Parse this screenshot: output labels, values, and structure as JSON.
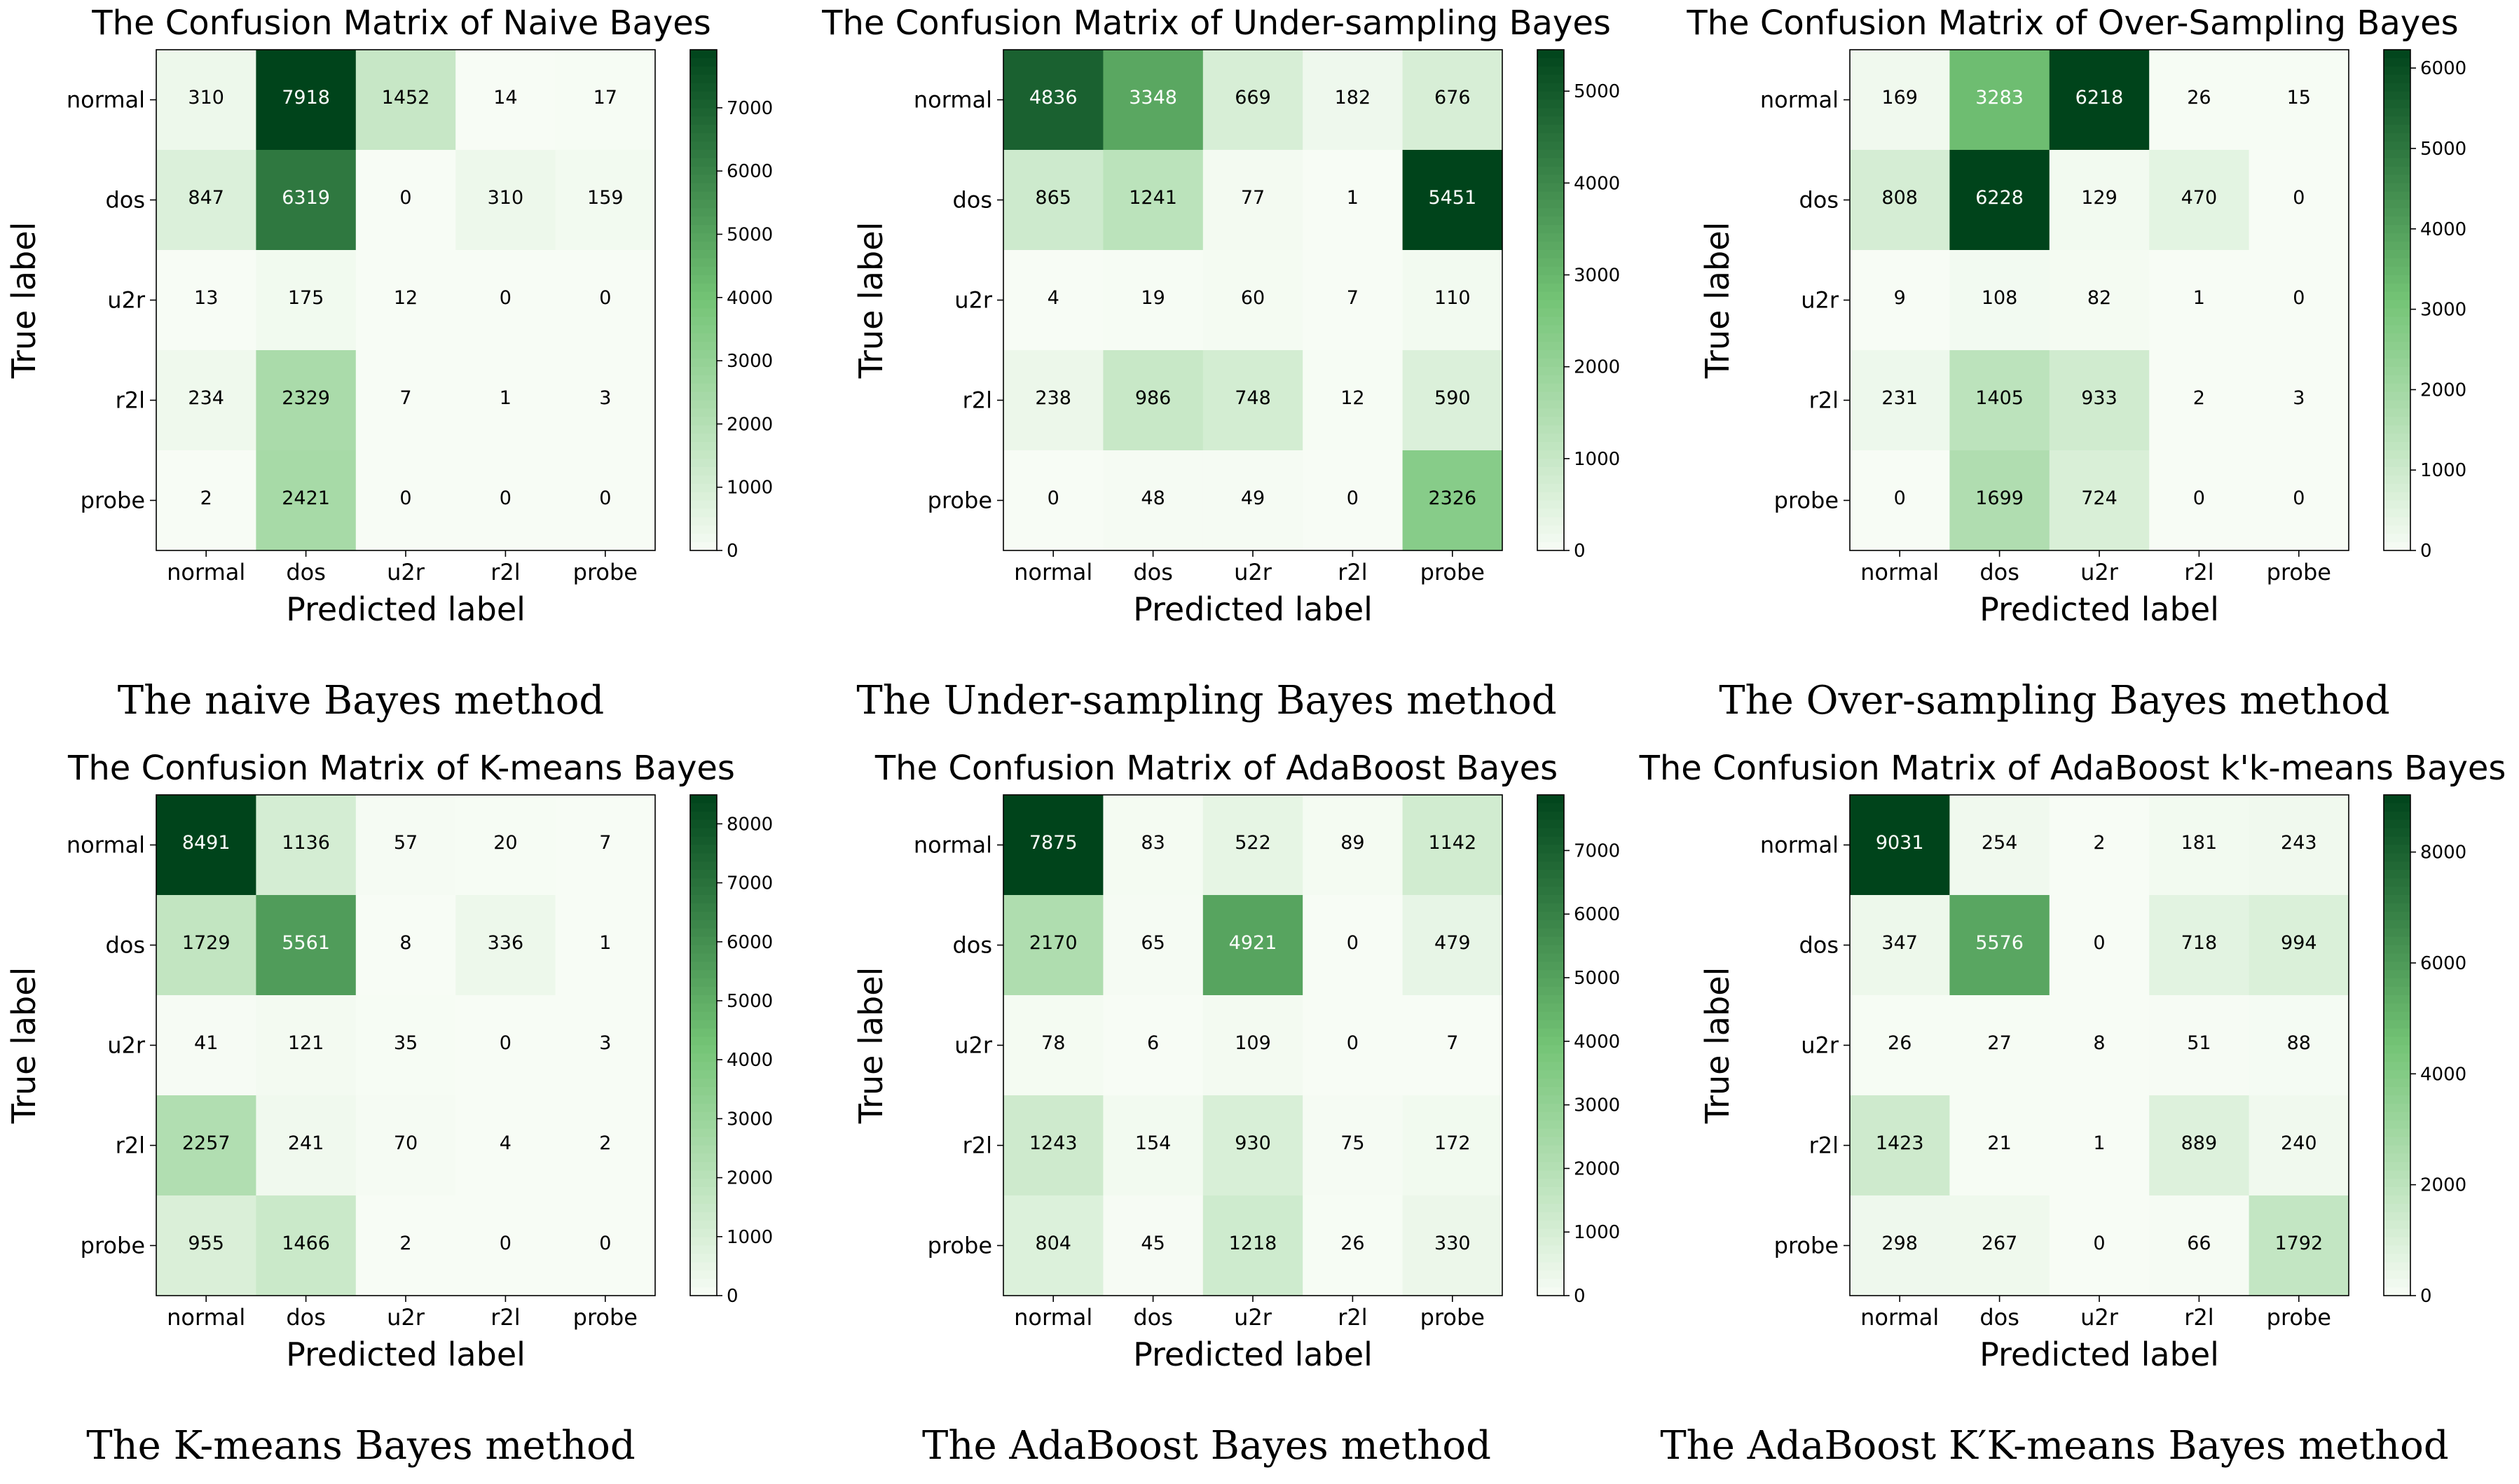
{
  "labels": [
    "normal",
    "dos",
    "u2r",
    "r2l",
    "probe"
  ],
  "xlabel": "Predicted label",
  "ylabel": "True label",
  "colors": {
    "low": "#f7fcf5",
    "mid": "#74c476",
    "high": "#00441b",
    "text_dark": "#000000",
    "text_light": "#ffffff"
  },
  "chart_data": [
    {
      "type": "heatmap",
      "title": "The Confusion Matrix of Naive Bayes",
      "caption": "The naive Bayes method",
      "vmax": 7918,
      "colorbar_ticks": [
        0,
        1000,
        2000,
        3000,
        4000,
        5000,
        6000,
        7000
      ],
      "matrix": [
        [
          310,
          7918,
          1452,
          14,
          17
        ],
        [
          847,
          6319,
          0,
          310,
          159
        ],
        [
          13,
          175,
          12,
          0,
          0
        ],
        [
          234,
          2329,
          7,
          1,
          3
        ],
        [
          2,
          2421,
          0,
          0,
          0
        ]
      ]
    },
    {
      "type": "heatmap",
      "title": "The Confusion Matrix of Under-sampling Bayes",
      "caption": "The Under-sampling Bayes method",
      "vmax": 5451,
      "colorbar_ticks": [
        0,
        1000,
        2000,
        3000,
        4000,
        5000
      ],
      "matrix": [
        [
          4836,
          3348,
          669,
          182,
          676
        ],
        [
          865,
          1241,
          77,
          1,
          5451
        ],
        [
          4,
          19,
          60,
          7,
          110
        ],
        [
          238,
          986,
          748,
          12,
          590
        ],
        [
          0,
          48,
          49,
          0,
          2326
        ]
      ]
    },
    {
      "type": "heatmap",
      "title": "The Confusion Matrix of Over-Sampling Bayes",
      "caption": "The Over-sampling Bayes method",
      "vmax": 6228,
      "colorbar_ticks": [
        0,
        1000,
        2000,
        3000,
        4000,
        5000,
        6000
      ],
      "matrix": [
        [
          169,
          3283,
          6218,
          26,
          15
        ],
        [
          808,
          6228,
          129,
          470,
          0
        ],
        [
          9,
          108,
          82,
          1,
          0
        ],
        [
          231,
          1405,
          933,
          2,
          3
        ],
        [
          0,
          1699,
          724,
          0,
          0
        ]
      ]
    },
    {
      "type": "heatmap",
      "title": "The Confusion Matrix of K-means Bayes",
      "caption": "The K-means Bayes method",
      "vmax": 8491,
      "colorbar_ticks": [
        0,
        1000,
        2000,
        3000,
        4000,
        5000,
        6000,
        7000,
        8000
      ],
      "matrix": [
        [
          8491,
          1136,
          57,
          20,
          7
        ],
        [
          1729,
          5561,
          8,
          336,
          1
        ],
        [
          41,
          121,
          35,
          0,
          3
        ],
        [
          2257,
          241,
          70,
          4,
          2
        ],
        [
          955,
          1466,
          2,
          0,
          0
        ]
      ]
    },
    {
      "type": "heatmap",
      "title": "The Confusion Matrix of AdaBoost Bayes",
      "caption": "The AdaBoost Bayes method",
      "vmax": 7875,
      "colorbar_ticks": [
        0,
        1000,
        2000,
        3000,
        4000,
        5000,
        6000,
        7000
      ],
      "matrix": [
        [
          7875,
          83,
          522,
          89,
          1142
        ],
        [
          2170,
          65,
          4921,
          0,
          479
        ],
        [
          78,
          6,
          109,
          0,
          7
        ],
        [
          1243,
          154,
          930,
          75,
          172
        ],
        [
          804,
          45,
          1218,
          26,
          330
        ]
      ]
    },
    {
      "type": "heatmap",
      "title": "The Confusion Matrix of AdaBoost k'k-means Bayes",
      "caption": "The AdaBoost K′K-means Bayes method",
      "vmax": 9031,
      "colorbar_ticks": [
        0,
        2000,
        4000,
        6000,
        8000
      ],
      "matrix": [
        [
          9031,
          254,
          2,
          181,
          243
        ],
        [
          347,
          5576,
          0,
          718,
          994
        ],
        [
          26,
          27,
          8,
          51,
          88
        ],
        [
          1423,
          21,
          1,
          889,
          240
        ],
        [
          298,
          267,
          0,
          66,
          1792
        ]
      ]
    }
  ]
}
